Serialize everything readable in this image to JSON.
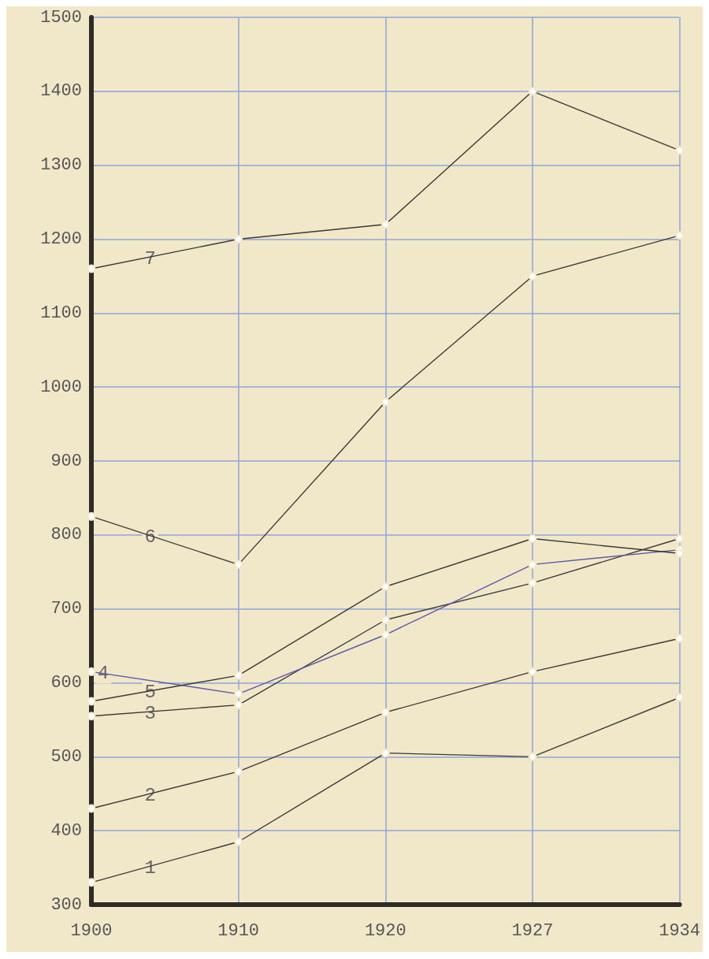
{
  "chart_data": {
    "type": "line",
    "categories": [
      "1900",
      "1910",
      "1920",
      "1927",
      "1934"
    ],
    "series": [
      {
        "name": "1",
        "color": "#3a3a36",
        "values": [
          330,
          385,
          505,
          500,
          580
        ]
      },
      {
        "name": "2",
        "color": "#3a3a36",
        "values": [
          430,
          480,
          560,
          615,
          660
        ]
      },
      {
        "name": "3",
        "color": "#3a3a36",
        "values": [
          555,
          570,
          685,
          735,
          795
        ]
      },
      {
        "name": "4",
        "color": "#5a5aa8",
        "values": [
          615,
          585,
          665,
          760,
          780
        ]
      },
      {
        "name": "5",
        "color": "#3a3a36",
        "values": [
          575,
          610,
          730,
          795,
          775
        ]
      },
      {
        "name": "6",
        "color": "#3a3a36",
        "values": [
          825,
          760,
          980,
          1150,
          1205
        ]
      },
      {
        "name": "7",
        "color": "#3a3a36",
        "values": [
          1160,
          1200,
          1220,
          1400,
          1320
        ]
      }
    ],
    "ylim": [
      300,
      1500
    ],
    "yticks": [
      300,
      400,
      500,
      600,
      700,
      800,
      900,
      1000,
      1100,
      1200,
      1300,
      1400,
      1500
    ],
    "grid": true,
    "marker": "circle",
    "line_style": "solid"
  }
}
